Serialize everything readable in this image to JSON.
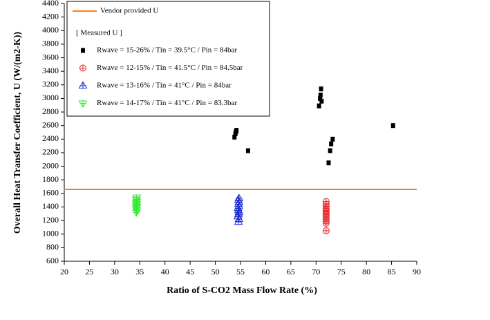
{
  "chart_data": {
    "type": "scatter",
    "x_label": "Ratio of S-CO2 Mass Flow Rate (%)",
    "y_label": "Overall Heat Transfer Coefficient, U (W/(m2-K))",
    "xlim": [
      20,
      90
    ],
    "xticks": [
      20,
      25,
      30,
      35,
      40,
      45,
      50,
      55,
      60,
      65,
      70,
      75,
      80,
      85,
      90
    ],
    "ylim": [
      600,
      4400
    ],
    "yticks": [
      600,
      800,
      1000,
      1200,
      1400,
      1600,
      1800,
      2000,
      2200,
      2400,
      2600,
      2800,
      3000,
      3200,
      3400,
      3600,
      3800,
      4000,
      4200,
      4400
    ],
    "reference_line": {
      "name": "Vendor provided U",
      "value": 1660,
      "color": "#f5821f"
    },
    "legend_title": "[ Measured U ]",
    "series": [
      {
        "name": "Rwave = 15-26% / Tin = 39.5°C / Pin = 84bar",
        "color": "#000000",
        "marker": "square",
        "x": [
          53.8,
          54.0,
          54.1,
          54.2,
          56.5,
          70.6,
          70.8,
          70.9,
          71.1,
          71.0,
          72.5,
          72.8,
          73.0,
          73.3,
          85.3
        ],
        "values": [
          2430,
          2480,
          2510,
          2530,
          2230,
          2890,
          3000,
          3050,
          2960,
          3140,
          2050,
          2230,
          2330,
          2400,
          2600
        ]
      },
      {
        "name": "Rwave = 12-15% / Tin = 41.5°C / Pin = 84.5bar",
        "color": "#e8262a",
        "marker": "circle-plus",
        "x": [
          72.0,
          72.0,
          72.0,
          72.0,
          72.0,
          72.0,
          72.0,
          72.0,
          72.0,
          72.0,
          72.0,
          72.0,
          72.0
        ],
        "values": [
          1050,
          1160,
          1190,
          1220,
          1250,
          1280,
          1300,
          1330,
          1350,
          1380,
          1410,
          1440,
          1480
        ]
      },
      {
        "name": "Rwave = 13-16% / Tin = 41°C / Pin = 84bar",
        "color": "#1f2fd0",
        "marker": "triangle-plus",
        "x": [
          54.6,
          54.7,
          54.5,
          54.6,
          54.7,
          54.6,
          54.5,
          54.7,
          54.6,
          54.7,
          54.6,
          54.7
        ],
        "values": [
          1180,
          1220,
          1260,
          1290,
          1320,
          1350,
          1380,
          1410,
          1440,
          1470,
          1500,
          1530
        ]
      },
      {
        "name": "Rwave = 14-17% / Tin = 41°C / Pin = 83.3bar",
        "color": "#2ee82e",
        "marker": "down-triangle-plus",
        "x": [
          34.3,
          34.4,
          34.3,
          34.4,
          34.3,
          34.4,
          34.3,
          34.4,
          34.3,
          34.4
        ],
        "values": [
          1320,
          1350,
          1380,
          1400,
          1420,
          1440,
          1460,
          1480,
          1510,
          1540
        ]
      }
    ]
  }
}
